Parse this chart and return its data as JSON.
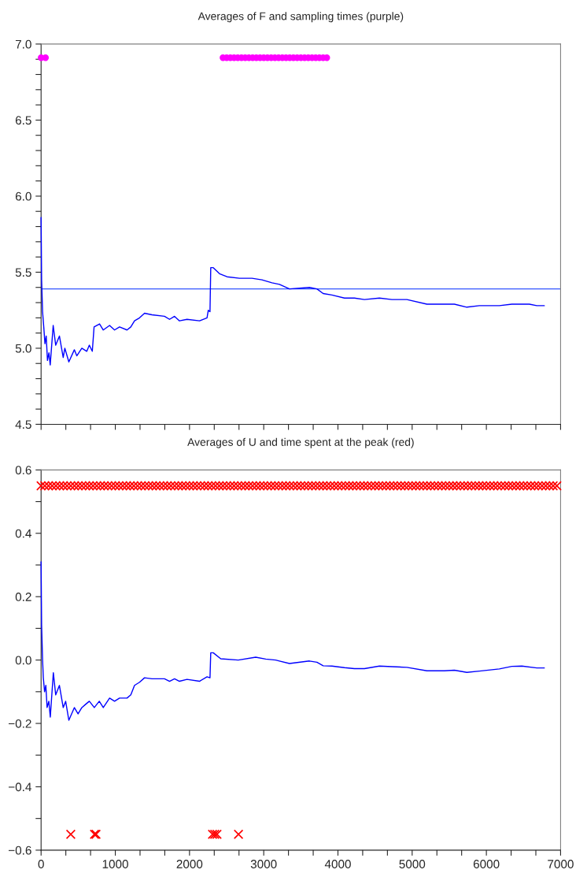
{
  "chart_data": [
    {
      "type": "line",
      "title": "Averages of F and sampling times (purple)",
      "tick_labels": "y",
      "grid": false,
      "xlim": [
        0,
        7000
      ],
      "ylim": [
        4.5,
        7.0
      ],
      "xticks": [
        {
          "value": 0,
          "label": null
        },
        {
          "value": 333.3,
          "label": null
        },
        {
          "value": 666.7,
          "label": null
        },
        {
          "value": 1000,
          "label": null
        },
        {
          "value": 1333.3,
          "label": null
        },
        {
          "value": 1666.7,
          "label": null
        },
        {
          "value": 2000,
          "label": null
        },
        {
          "value": 2333.3,
          "label": null
        },
        {
          "value": 2666.7,
          "label": null
        },
        {
          "value": 3000,
          "label": null
        },
        {
          "value": 3333.3,
          "label": null
        },
        {
          "value": 3666.7,
          "label": null
        },
        {
          "value": 4000,
          "label": null
        },
        {
          "value": 4333.3,
          "label": null
        },
        {
          "value": 4666.7,
          "label": null
        },
        {
          "value": 5000,
          "label": null
        },
        {
          "value": 5333.3,
          "label": null
        },
        {
          "value": 5666.7,
          "label": null
        },
        {
          "value": 6000,
          "label": null
        },
        {
          "value": 6333.3,
          "label": null
        },
        {
          "value": 6666.7,
          "label": null
        },
        {
          "value": 7000,
          "label": null
        }
      ],
      "yticks": [
        {
          "value": 4.5,
          "label": "4.5"
        },
        {
          "value": 4.6,
          "label": null
        },
        {
          "value": 4.7,
          "label": null
        },
        {
          "value": 4.8,
          "label": null
        },
        {
          "value": 4.9,
          "label": null
        },
        {
          "value": 5.0,
          "label": "5.0"
        },
        {
          "value": 5.1,
          "label": null
        },
        {
          "value": 5.2,
          "label": null
        },
        {
          "value": 5.3,
          "label": null
        },
        {
          "value": 5.4,
          "label": null
        },
        {
          "value": 5.5,
          "label": "5.5"
        },
        {
          "value": 5.6,
          "label": null
        },
        {
          "value": 5.7,
          "label": null
        },
        {
          "value": 5.8,
          "label": null
        },
        {
          "value": 5.9,
          "label": null
        },
        {
          "value": 6.0,
          "label": "6.0"
        },
        {
          "value": 6.1,
          "label": null
        },
        {
          "value": 6.2,
          "label": null
        },
        {
          "value": 6.3,
          "label": null
        },
        {
          "value": 6.4,
          "label": null
        },
        {
          "value": 6.5,
          "label": "6.5"
        },
        {
          "value": 6.6,
          "label": null
        },
        {
          "value": 6.7,
          "label": null
        },
        {
          "value": 6.8,
          "label": null
        },
        {
          "value": 6.9,
          "label": null
        },
        {
          "value": 7.0,
          "label": "7.0"
        }
      ],
      "ref_lines": [
        {
          "axis": "y",
          "value": 5.39,
          "color": "#3355ff",
          "line_style": "solid"
        }
      ],
      "series": [
        {
          "color": "#0000ff",
          "marker": "none",
          "line_style": "solid",
          "x": [
            0,
            7,
            20,
            36,
            52,
            69,
            86,
            106,
            123,
            163,
            197,
            247,
            298,
            320,
            374,
            448,
            481,
            549,
            616,
            650,
            690,
            714,
            788,
            838,
            923,
            990,
            1057,
            1158,
            1209,
            1259,
            1327,
            1394,
            1495,
            1663,
            1731,
            1798,
            1865,
            1966,
            2135,
            2236,
            2253,
            2276,
            2286,
            2320,
            2404,
            2505,
            2673,
            2842,
            2976,
            3111,
            3212,
            3347,
            3616,
            3717,
            3801,
            3919,
            4088,
            4222,
            4357,
            4559,
            4727,
            4929,
            5199,
            5434,
            5569,
            5737,
            5906,
            6175,
            6343,
            6579,
            6680,
            6781
          ],
          "values": [
            5.86,
            5.45,
            5.24,
            5.14,
            5.03,
            5.08,
            4.92,
            4.97,
            4.89,
            5.15,
            5.02,
            5.08,
            4.94,
            5.0,
            4.91,
            4.99,
            4.95,
            5.0,
            4.98,
            5.02,
            4.98,
            5.14,
            5.16,
            5.12,
            5.15,
            5.12,
            5.14,
            5.12,
            5.14,
            5.18,
            5.2,
            5.23,
            5.22,
            5.21,
            5.19,
            5.21,
            5.18,
            5.19,
            5.18,
            5.2,
            5.25,
            5.24,
            5.53,
            5.53,
            5.49,
            5.47,
            5.46,
            5.46,
            5.45,
            5.43,
            5.42,
            5.39,
            5.4,
            5.39,
            5.36,
            5.35,
            5.33,
            5.33,
            5.32,
            5.33,
            5.32,
            5.32,
            5.29,
            5.29,
            5.29,
            5.27,
            5.28,
            5.28,
            5.29,
            5.29,
            5.28,
            5.28
          ]
        },
        {
          "type": "scatter",
          "color": "#ff00ff",
          "marker": "circle",
          "x": [
            0,
            60,
            2450,
            2500,
            2550,
            2600,
            2650,
            2700,
            2750,
            2800,
            2850,
            2900,
            2950,
            3000,
            3050,
            3100,
            3150,
            3200,
            3250,
            3300,
            3350,
            3400,
            3450,
            3500,
            3550,
            3600,
            3650,
            3700,
            3750,
            3800,
            3850
          ],
          "values": [
            6.91,
            6.91,
            6.91,
            6.91,
            6.91,
            6.91,
            6.91,
            6.91,
            6.91,
            6.91,
            6.91,
            6.91,
            6.91,
            6.91,
            6.91,
            6.91,
            6.91,
            6.91,
            6.91,
            6.91,
            6.91,
            6.91,
            6.91,
            6.91,
            6.91,
            6.91,
            6.91,
            6.91,
            6.91,
            6.91,
            6.91
          ]
        }
      ]
    },
    {
      "type": "line",
      "title": "Averages of U and time spent at the peak (red)",
      "grid": false,
      "xlim": [
        0,
        7000
      ],
      "ylim": [
        -0.6,
        0.6
      ],
      "xticks": [
        0,
        {
          "value": 333.3,
          "label": null
        },
        {
          "value": 666.7,
          "label": null
        },
        1000,
        {
          "value": 1333.3,
          "label": null
        },
        {
          "value": 1666.7,
          "label": null
        },
        2000,
        {
          "value": 2333.3,
          "label": null
        },
        {
          "value": 2666.7,
          "label": null
        },
        3000,
        {
          "value": 3333.3,
          "label": null
        },
        {
          "value": 3666.7,
          "label": null
        },
        4000,
        {
          "value": 4333.3,
          "label": null
        },
        {
          "value": 4666.7,
          "label": null
        },
        5000,
        {
          "value": 5333.3,
          "label": null
        },
        {
          "value": 5666.7,
          "label": null
        },
        6000,
        {
          "value": 6333.3,
          "label": null
        },
        {
          "value": 6666.7,
          "label": null
        },
        7000
      ],
      "yticks": [
        {
          "value": -0.6,
          "label": "−0.6"
        },
        {
          "value": -0.5,
          "label": null
        },
        {
          "value": -0.4,
          "label": "−0.4"
        },
        {
          "value": -0.3,
          "label": null
        },
        {
          "value": -0.2,
          "label": "−0.2"
        },
        {
          "value": -0.1,
          "label": null
        },
        {
          "value": 0.0,
          "label": "0.0"
        },
        {
          "value": 0.1,
          "label": null
        },
        {
          "value": 0.2,
          "label": "0.2"
        },
        {
          "value": 0.3,
          "label": null
        },
        {
          "value": 0.4,
          "label": "0.4"
        },
        {
          "value": 0.5,
          "label": null
        },
        {
          "value": 0.6,
          "label": "0.6"
        }
      ],
      "series": [
        {
          "color": "#0000ff",
          "marker": "none",
          "line_style": "solid",
          "x": [
            0,
            7,
            20,
            30,
            47,
            64,
            81,
            104,
            124,
            165,
            197,
            247,
            298,
            331,
            374,
            448,
            498,
            549,
            599,
            650,
            717,
            784,
            838,
            923,
            990,
            1057,
            1158,
            1209,
            1259,
            1327,
            1394,
            1495,
            1663,
            1731,
            1798,
            1865,
            1966,
            2135,
            2236,
            2276,
            2286,
            2320,
            2421,
            2657,
            2892,
            3027,
            3162,
            3212,
            3347,
            3616,
            3717,
            3801,
            3919,
            4088,
            4222,
            4357,
            4559,
            4727,
            4929,
            5199,
            5434,
            5569,
            5737,
            5906,
            6175,
            6343,
            6478,
            6680,
            6781
          ],
          "values": [
            0.31,
            0.11,
            0.0,
            -0.055,
            -0.1,
            -0.08,
            -0.15,
            -0.13,
            -0.18,
            -0.04,
            -0.11,
            -0.08,
            -0.15,
            -0.13,
            -0.19,
            -0.15,
            -0.17,
            -0.15,
            -0.14,
            -0.13,
            -0.15,
            -0.13,
            -0.15,
            -0.12,
            -0.13,
            -0.12,
            -0.12,
            -0.11,
            -0.08,
            -0.07,
            -0.056,
            -0.059,
            -0.059,
            -0.067,
            -0.059,
            -0.067,
            -0.061,
            -0.067,
            -0.053,
            -0.056,
            0.023,
            0.023,
            0.004,
            0.0,
            0.009,
            0.003,
            0.0,
            -0.003,
            -0.011,
            -0.003,
            -0.007,
            -0.018,
            -0.019,
            -0.024,
            -0.027,
            -0.027,
            -0.019,
            -0.021,
            -0.023,
            -0.034,
            -0.034,
            -0.032,
            -0.039,
            -0.035,
            -0.028,
            -0.02,
            -0.019,
            -0.025,
            -0.025
          ]
        },
        {
          "type": "scatter",
          "color": "#ff0000",
          "marker": "cross",
          "x": [
            0,
            50,
            100,
            150,
            200,
            250,
            300,
            350,
            400,
            450,
            500,
            550,
            600,
            650,
            700,
            750,
            800,
            850,
            900,
            950,
            1000,
            1050,
            1100,
            1150,
            1200,
            1250,
            1300,
            1350,
            1400,
            1450,
            1500,
            1550,
            1600,
            1650,
            1700,
            1750,
            1800,
            1850,
            1900,
            1950,
            2000,
            2050,
            2100,
            2150,
            2200,
            2250,
            2300,
            2350,
            2400,
            2450,
            2500,
            2550,
            2600,
            2650,
            2700,
            2750,
            2800,
            2850,
            2900,
            2950,
            3000,
            3050,
            3100,
            3150,
            3200,
            3250,
            3300,
            3350,
            3400,
            3450,
            3500,
            3550,
            3600,
            3650,
            3700,
            3750,
            3800,
            3850,
            3900,
            3950,
            4000,
            4050,
            4100,
            4150,
            4200,
            4250,
            4300,
            4350,
            4400,
            4450,
            4500,
            4550,
            4600,
            4650,
            4700,
            4750,
            4800,
            4850,
            4900,
            4950,
            5000,
            5050,
            5100,
            5150,
            5200,
            5250,
            5300,
            5350,
            5400,
            5450,
            5500,
            5550,
            5600,
            5650,
            5700,
            5750,
            5800,
            5850,
            5900,
            5950,
            6000,
            6050,
            6100,
            6150,
            6200,
            6250,
            6300,
            6350,
            6400,
            6450,
            6500,
            6550,
            6600,
            6650,
            6700,
            6750,
            6800,
            6850,
            6900,
            6950
          ],
          "values": [
            0.55,
            0.55,
            0.55,
            0.55,
            0.55,
            0.55,
            0.55,
            0.55,
            0.55,
            0.55,
            0.55,
            0.55,
            0.55,
            0.55,
            0.55,
            0.55,
            0.55,
            0.55,
            0.55,
            0.55,
            0.55,
            0.55,
            0.55,
            0.55,
            0.55,
            0.55,
            0.55,
            0.55,
            0.55,
            0.55,
            0.55,
            0.55,
            0.55,
            0.55,
            0.55,
            0.55,
            0.55,
            0.55,
            0.55,
            0.55,
            0.55,
            0.55,
            0.55,
            0.55,
            0.55,
            0.55,
            0.55,
            0.55,
            0.55,
            0.55,
            0.55,
            0.55,
            0.55,
            0.55,
            0.55,
            0.55,
            0.55,
            0.55,
            0.55,
            0.55,
            0.55,
            0.55,
            0.55,
            0.55,
            0.55,
            0.55,
            0.55,
            0.55,
            0.55,
            0.55,
            0.55,
            0.55,
            0.55,
            0.55,
            0.55,
            0.55,
            0.55,
            0.55,
            0.55,
            0.55,
            0.55,
            0.55,
            0.55,
            0.55,
            0.55,
            0.55,
            0.55,
            0.55,
            0.55,
            0.55,
            0.55,
            0.55,
            0.55,
            0.55,
            0.55,
            0.55,
            0.55,
            0.55,
            0.55,
            0.55,
            0.55,
            0.55,
            0.55,
            0.55,
            0.55,
            0.55,
            0.55,
            0.55,
            0.55,
            0.55,
            0.55,
            0.55,
            0.55,
            0.55,
            0.55,
            0.55,
            0.55,
            0.55,
            0.55,
            0.55,
            0.55,
            0.55,
            0.55,
            0.55,
            0.55,
            0.55,
            0.55,
            0.55,
            0.55,
            0.55,
            0.55,
            0.55,
            0.55,
            0.55,
            0.55,
            0.55,
            0.55,
            0.55,
            0.55,
            0.55
          ]
        },
        {
          "type": "scatter",
          "color": "#ff0000",
          "marker": "cross",
          "x": [
            400,
            720,
            740,
            2310,
            2340,
            2370,
            2660
          ],
          "values": [
            -0.55,
            -0.55,
            -0.55,
            -0.55,
            -0.55,
            -0.55,
            -0.55
          ]
        }
      ]
    }
  ]
}
